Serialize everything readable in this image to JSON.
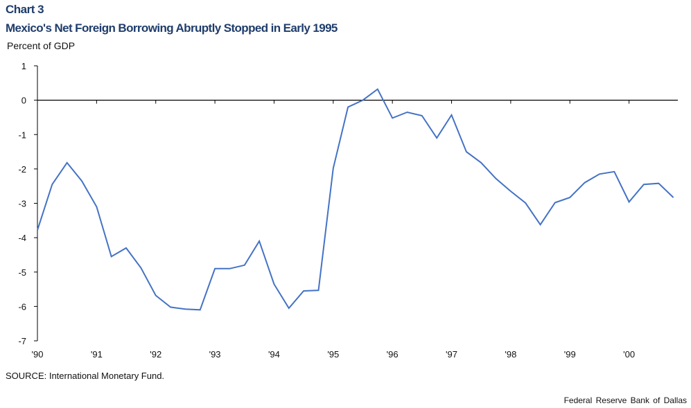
{
  "header": {
    "chart_number": "Chart 3",
    "title": "Mexico's Net Foreign Borrowing Abruptly Stopped in Early 1995"
  },
  "footer": {
    "source": "SOURCE: International Monetary Fund.",
    "credit": "Federal Reserve Bank of Dallas"
  },
  "chart_data": {
    "type": "line",
    "title": "Mexico's Net Foreign Borrowing Abruptly Stopped in Early 1995",
    "ylabel": "Percent of GDP",
    "xlabel": "",
    "ylim": [
      -7,
      1
    ],
    "yticks": [
      1,
      0,
      -1,
      -2,
      -3,
      -4,
      -5,
      -6,
      -7
    ],
    "year_ticks": [
      "'90",
      "'91",
      "'92",
      "'93",
      "'94",
      "'95",
      "'96",
      "'97",
      "'98",
      "'99",
      "'00"
    ],
    "x_frequency": "quarterly",
    "x_start": "1990 Q1",
    "grid": false,
    "line_color": "#4472c4",
    "series": [
      {
        "values": [
          -3.78,
          -2.45,
          -1.82,
          -2.35,
          -3.1,
          -4.55,
          -4.3,
          -4.88,
          -5.68,
          -6.02,
          -6.08,
          -6.1,
          -4.9,
          -4.9,
          -4.8,
          -4.1,
          -5.35,
          -6.05,
          -5.55,
          -5.53,
          -1.98,
          -0.2,
          0.0,
          0.32,
          -0.52,
          -0.35,
          -0.45,
          -1.1,
          -0.43,
          -1.5,
          -1.82,
          -2.28,
          -2.65,
          -2.99,
          -3.62,
          -2.98,
          -2.83,
          -2.4,
          -2.15,
          -2.08,
          -2.96,
          -2.45,
          -2.42,
          -2.83
        ]
      }
    ]
  }
}
